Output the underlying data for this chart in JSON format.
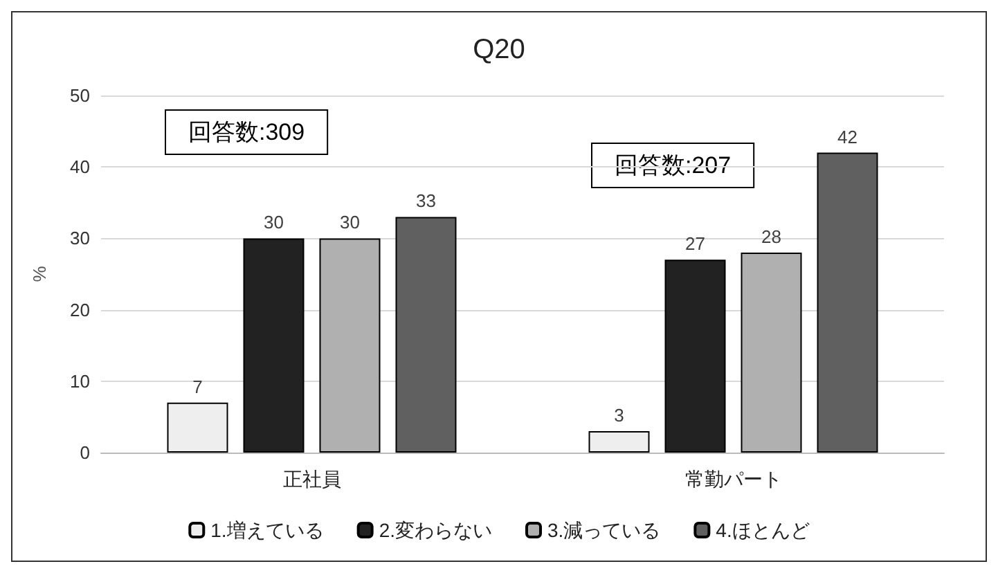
{
  "chart_data": {
    "type": "bar",
    "title": "Q20",
    "ylabel": "%",
    "categories": [
      "正社員",
      "常勤パート"
    ],
    "series": [
      {
        "name": "1.増えている",
        "color": "#eeeeee",
        "values": [
          7,
          3
        ]
      },
      {
        "name": "2.変わらない",
        "color": "#222222",
        "values": [
          30,
          27
        ]
      },
      {
        "name": "3.減っている",
        "color": "#b0b0b0",
        "values": [
          30,
          28
        ]
      },
      {
        "name": "4.ほとんど",
        "color": "#606060",
        "values": [
          33,
          42
        ]
      }
    ],
    "ylim": [
      0,
      50
    ],
    "yticks": [
      0,
      10,
      20,
      30,
      40,
      50
    ],
    "grid": "y",
    "legend": "bottom",
    "data_labels": true,
    "annotations": [
      "回答数:309",
      "回答数:207"
    ]
  }
}
